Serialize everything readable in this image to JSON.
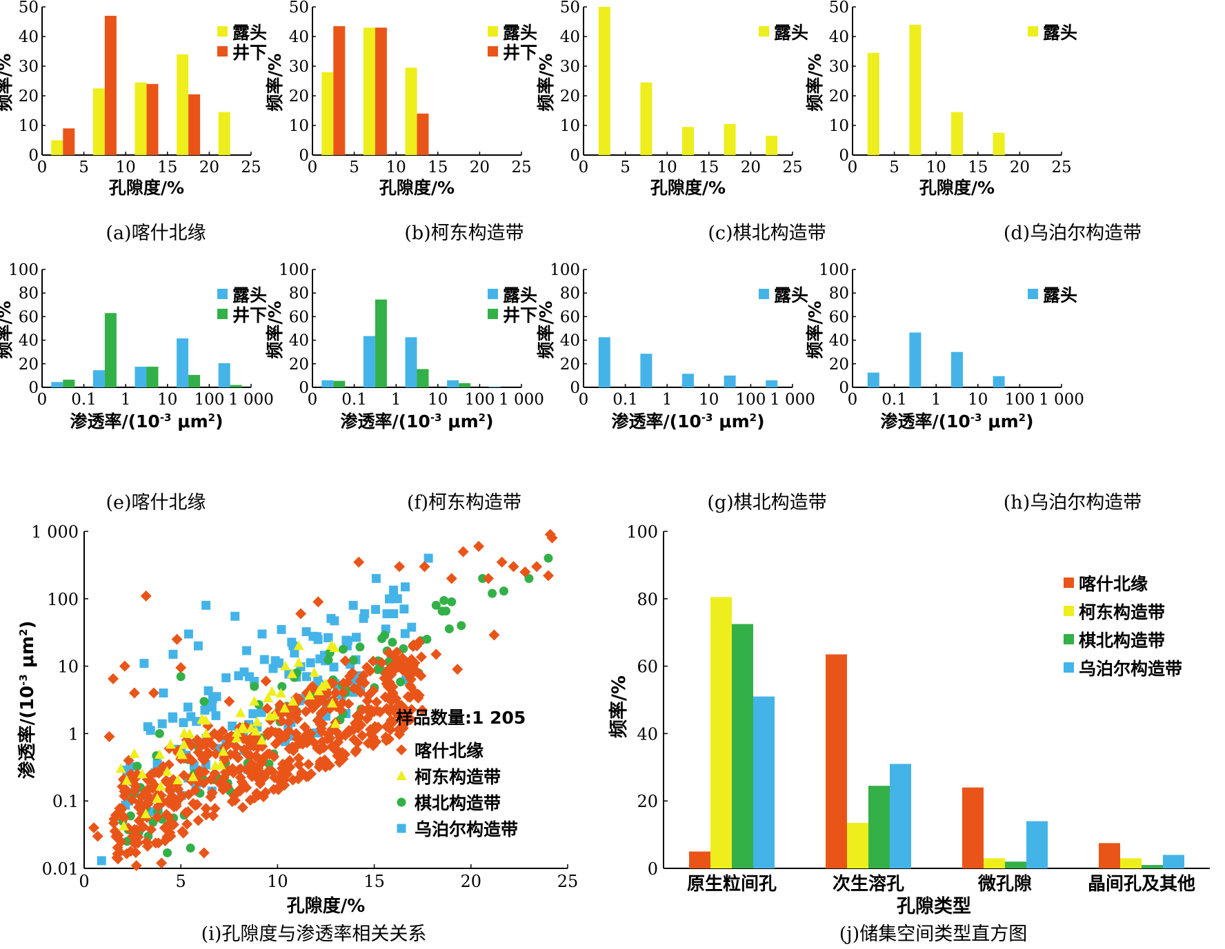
{
  "colors": {
    "outcrop_porosity": "#eeee1c",
    "underground_porosity": "#e95519",
    "outcrop_permeability": "#44b4e8",
    "underground_permeability": "#33b048",
    "kashi": "#e95519",
    "kedong": "#eeee1c",
    "qibei": "#33b048",
    "wupoer": "#44b4e8"
  },
  "chart_data": [
    {
      "id": "a",
      "type": "bar",
      "caption": "(a)喀什北缘",
      "xlabel": "孔隙度/%",
      "ylabel": "频率/%",
      "xlim": [
        0,
        25
      ],
      "xticks": [
        "0",
        "5",
        "10",
        "15",
        "20",
        "25"
      ],
      "ylim": [
        0,
        50
      ],
      "yticks": [
        "0",
        "10",
        "20",
        "30",
        "40",
        "50"
      ],
      "categories": [
        "0-5",
        "5-10",
        "10-15",
        "15-20",
        "20-25"
      ],
      "series": [
        {
          "name": "露头",
          "color_key": "outcrop_porosity",
          "values": [
            5,
            22.5,
            24.5,
            34,
            14.5
          ]
        },
        {
          "name": "井下",
          "color_key": "underground_porosity",
          "values": [
            9,
            47,
            24,
            20.5,
            null
          ]
        }
      ],
      "legend": "top-right"
    },
    {
      "id": "b",
      "type": "bar",
      "caption": "(b)柯东构造带",
      "xlabel": "孔隙度/%",
      "ylabel": "频率/%",
      "xlim": [
        0,
        25
      ],
      "xticks": [
        "0",
        "5",
        "10",
        "15",
        "20",
        "25"
      ],
      "ylim": [
        0,
        50
      ],
      "yticks": [
        "0",
        "10",
        "20",
        "30",
        "40",
        "50"
      ],
      "categories": [
        "0-5",
        "5-10",
        "10-15",
        "15-20",
        "20-25"
      ],
      "series": [
        {
          "name": "露头",
          "color_key": "outcrop_porosity",
          "values": [
            28,
            43,
            29.5,
            null,
            null
          ]
        },
        {
          "name": "井下",
          "color_key": "underground_porosity",
          "values": [
            43.5,
            43,
            14,
            null,
            null
          ]
        }
      ],
      "legend": "top-right"
    },
    {
      "id": "c",
      "type": "bar",
      "caption": "(c)棋北构造带",
      "xlabel": "孔隙度/%",
      "ylabel": "频率/%",
      "xlim": [
        0,
        25
      ],
      "xticks": [
        "0",
        "5",
        "10",
        "15",
        "20",
        "25"
      ],
      "ylim": [
        0,
        50
      ],
      "yticks": [
        "0",
        "10",
        "20",
        "30",
        "40",
        "50"
      ],
      "categories": [
        "0-5",
        "5-10",
        "10-15",
        "15-20",
        "20-25"
      ],
      "series": [
        {
          "name": "露头",
          "color_key": "outcrop_porosity",
          "values": [
            50,
            24.5,
            9.5,
            10.5,
            6.5
          ]
        }
      ],
      "legend": "top-right"
    },
    {
      "id": "d",
      "type": "bar",
      "caption": "(d)乌泊尔构造带",
      "xlabel": "孔隙度/%",
      "ylabel": "频率/%",
      "xlim": [
        0,
        25
      ],
      "xticks": [
        "0",
        "5",
        "10",
        "15",
        "20",
        "25"
      ],
      "ylim": [
        0,
        50
      ],
      "yticks": [
        "0",
        "10",
        "20",
        "30",
        "40",
        "50"
      ],
      "categories": [
        "0-5",
        "5-10",
        "10-15",
        "15-20",
        "20-25"
      ],
      "series": [
        {
          "name": "露头",
          "color_key": "outcrop_porosity",
          "values": [
            34.5,
            44,
            14.5,
            7.5,
            null
          ]
        }
      ],
      "legend": "top-right"
    },
    {
      "id": "e",
      "type": "bar",
      "caption": "(e)喀什北缘",
      "xlabel": "渗透率/(10⁻³ μm²)",
      "ylabel": "频率/%",
      "xticks": [
        "0",
        "0.1",
        "1",
        "10",
        "100",
        "1 000"
      ],
      "ylim": [
        0,
        100
      ],
      "yticks": [
        "0",
        "20",
        "40",
        "60",
        "80",
        "100"
      ],
      "categories": [
        "<0.1",
        "0.1-1",
        "1-10",
        "10-100",
        ">100"
      ],
      "series": [
        {
          "name": "露头",
          "color_key": "outcrop_permeability",
          "values": [
            4.5,
            14.5,
            17.5,
            41.5,
            20.5
          ]
        },
        {
          "name": "井下",
          "color_key": "underground_permeability",
          "values": [
            6.5,
            63,
            17.5,
            10.5,
            2
          ]
        }
      ],
      "legend": "top-right"
    },
    {
      "id": "f",
      "type": "bar",
      "caption": "(f)柯东构造带",
      "xlabel": "渗透率/(10⁻³ μm²)",
      "ylabel": "频率/%",
      "xticks": [
        "0",
        "0.1",
        "1",
        "10",
        "100",
        "1 000"
      ],
      "ylim": [
        0,
        100
      ],
      "yticks": [
        "0",
        "20",
        "40",
        "60",
        "80",
        "100"
      ],
      "categories": [
        "<0.1",
        "0.1-1",
        "1-10",
        "10-100",
        ">100"
      ],
      "series": [
        {
          "name": "露头",
          "color_key": "outcrop_permeability",
          "values": [
            6,
            43.5,
            42.5,
            6,
            0.5
          ]
        },
        {
          "name": "井下",
          "color_key": "underground_permeability",
          "values": [
            5.5,
            74.5,
            15.5,
            3.5,
            null
          ]
        }
      ],
      "legend": "top-right"
    },
    {
      "id": "g",
      "type": "bar",
      "caption": "(g)棋北构造带",
      "xlabel": "渗透率/(10⁻³ μm²)",
      "ylabel": "频率/%",
      "xticks": [
        "0",
        "0.1",
        "1",
        "10",
        "100",
        "1 000"
      ],
      "ylim": [
        0,
        100
      ],
      "yticks": [
        "0",
        "20",
        "40",
        "60",
        "80",
        "100"
      ],
      "categories": [
        "<0.1",
        "0.1-1",
        "1-10",
        "10-100",
        ">100"
      ],
      "series": [
        {
          "name": "露头",
          "color_key": "outcrop_permeability",
          "values": [
            42.5,
            28.5,
            11.5,
            10,
            6
          ]
        }
      ],
      "legend": "top-right"
    },
    {
      "id": "h",
      "type": "bar",
      "caption": "(h)乌泊尔构造带",
      "xlabel": "渗透率/(10⁻³ μm²)",
      "ylabel": "频率/%",
      "xticks": [
        "0",
        "0.1",
        "1",
        "10",
        "100",
        "1 000"
      ],
      "ylim": [
        0,
        100
      ],
      "yticks": [
        "0",
        "20",
        "40",
        "60",
        "80",
        "100"
      ],
      "categories": [
        "<0.1",
        "0.1-1",
        "1-10",
        "10-100",
        ">100"
      ],
      "series": [
        {
          "name": "露头",
          "color_key": "outcrop_permeability",
          "values": [
            12.5,
            46.5,
            30,
            9.5,
            null
          ]
        }
      ],
      "legend": "top-right"
    },
    {
      "id": "i",
      "type": "scatter",
      "caption": "(i)孔隙度与渗透率相关关系",
      "xlabel": "孔隙度/%",
      "ylabel": "渗透率/(10⁻³ μm²)",
      "xlim": [
        0,
        25
      ],
      "xticks": [
        "0",
        "5",
        "10",
        "15",
        "20",
        "25"
      ],
      "yscale": "log",
      "ylim": [
        0.01,
        1000
      ],
      "yticks": [
        "0.01",
        "0.1",
        "1",
        "10",
        "100",
        "1 000"
      ],
      "annotation": "样品数量:1 205",
      "legend": "lower-right",
      "series": [
        {
          "name": "喀什北缘",
          "marker": "diamond",
          "color_key": "kashi",
          "points": [
            [
              0.5,
              0.04
            ],
            [
              0.7,
              0.03
            ],
            [
              1.3,
              0.9
            ],
            [
              1.5,
              6.5
            ],
            [
              2.1,
              10
            ],
            [
              2.3,
              0.4
            ],
            [
              2.6,
              4
            ],
            [
              2.7,
              0.011
            ],
            [
              3.2,
              110
            ],
            [
              3.3,
              0.15
            ],
            [
              3.6,
              4
            ],
            [
              4,
              0.012
            ],
            [
              4.4,
              0.6
            ],
            [
              4.8,
              25
            ],
            [
              5,
              9.5
            ],
            [
              5.3,
              0.8
            ],
            [
              6.2,
              0.017
            ],
            [
              6.4,
              1.3
            ],
            [
              6.8,
              0.5
            ],
            [
              7.5,
              3
            ],
            [
              8.2,
              0.08
            ],
            [
              8.5,
              0.3
            ],
            [
              9.1,
              0.18
            ],
            [
              9.4,
              6
            ],
            [
              9.9,
              0.7
            ],
            [
              10.5,
              0.25
            ],
            [
              11.2,
              60
            ],
            [
              11.8,
              5
            ],
            [
              12.1,
              90
            ],
            [
              12.9,
              0.6
            ],
            [
              13.5,
              12
            ],
            [
              14,
              1.2
            ],
            [
              14.2,
              350
            ],
            [
              15,
              0.8
            ],
            [
              15.6,
              8
            ],
            [
              16,
              1.5
            ],
            [
              16.3,
              300
            ],
            [
              16.5,
              1.2
            ],
            [
              17.2,
              20
            ],
            [
              17.6,
              300
            ],
            [
              18.2,
              15
            ],
            [
              19,
              200
            ],
            [
              19.3,
              9
            ],
            [
              19.6,
              500
            ],
            [
              20.4,
              600
            ],
            [
              20.9,
              200
            ],
            [
              21.2,
              29
            ],
            [
              21.6,
              350
            ],
            [
              22.2,
              300
            ],
            [
              22.8,
              250
            ],
            [
              23.4,
              300
            ],
            [
              24,
              220
            ],
            [
              24.1,
              900
            ],
            [
              24.2,
              800
            ]
          ]
        },
        {
          "name": "柯东构造带",
          "marker": "triangle",
          "color_key": "kedong",
          "points": [
            [
              1.9,
              0.3
            ],
            [
              2.2,
              0.2
            ],
            [
              2.6,
              0.5
            ],
            [
              3,
              0.25
            ],
            [
              8.8,
              3
            ],
            [
              9.6,
              1.8
            ],
            [
              10.4,
              10
            ],
            [
              11.1,
              20
            ],
            [
              11.9,
              8
            ],
            [
              12.3,
              5
            ],
            [
              13,
              1.4
            ]
          ]
        },
        {
          "name": "棋北构造带",
          "marker": "circle",
          "color_key": "qibei",
          "points": [
            [
              2,
              0.05
            ],
            [
              2.4,
              0.06
            ],
            [
              3.2,
              0.08
            ],
            [
              3.9,
              1
            ],
            [
              4.3,
              0.017
            ],
            [
              5,
              7
            ],
            [
              5.5,
              0.02
            ],
            [
              6.2,
              3
            ],
            [
              7.2,
              0.5
            ],
            [
              8.8,
              5
            ],
            [
              9.8,
              0.5
            ],
            [
              11,
              8
            ],
            [
              13.5,
              4
            ],
            [
              15.2,
              12
            ],
            [
              16.8,
              8
            ],
            [
              17,
              20
            ],
            [
              18.2,
              80
            ],
            [
              19,
              90
            ],
            [
              19.5,
              40
            ],
            [
              20.6,
              200
            ],
            [
              21.1,
              120
            ],
            [
              21.7,
              130
            ],
            [
              23,
              200
            ],
            [
              24,
              400
            ]
          ]
        },
        {
          "name": "乌泊尔构造带",
          "marker": "square",
          "color_key": "wupoer",
          "points": [
            [
              0.9,
              0.013
            ],
            [
              2.3,
              0.1
            ],
            [
              3.1,
              11
            ],
            [
              4.1,
              4
            ],
            [
              4.6,
              15
            ],
            [
              5.4,
              30
            ],
            [
              5.9,
              20
            ],
            [
              6.3,
              80
            ],
            [
              6.9,
              0.6
            ],
            [
              7.8,
              55
            ],
            [
              8.4,
              17
            ],
            [
              9.2,
              30
            ],
            [
              10.2,
              35
            ],
            [
              10.8,
              20
            ],
            [
              11.5,
              7
            ],
            [
              12.4,
              4
            ],
            [
              13.6,
              20
            ],
            [
              14.5,
              60
            ],
            [
              15.1,
              200
            ],
            [
              16,
              60
            ],
            [
              16.2,
              100
            ],
            [
              16.6,
              150
            ],
            [
              17.8,
              400
            ]
          ]
        }
      ]
    },
    {
      "id": "j",
      "type": "bar",
      "caption": "(j)储集空间类型直方图",
      "xlabel": "孔隙类型",
      "ylabel": "频率/%",
      "ylim": [
        0,
        100
      ],
      "yticks": [
        "0",
        "20",
        "40",
        "60",
        "80",
        "100"
      ],
      "categories": [
        "原生粒间孔",
        "次生溶孔",
        "微孔隙",
        "晶间孔及其他"
      ],
      "series": [
        {
          "name": "喀什北缘",
          "color_key": "kashi",
          "values": [
            5,
            63.5,
            24,
            7.5
          ]
        },
        {
          "name": "柯东构造带",
          "color_key": "kedong",
          "values": [
            80.5,
            13.5,
            3,
            3
          ]
        },
        {
          "name": "棋北构造带",
          "color_key": "qibei",
          "values": [
            72.5,
            24.5,
            2,
            1
          ]
        },
        {
          "name": "乌泊尔构造带",
          "color_key": "wupoer",
          "values": [
            51,
            31,
            14,
            4
          ]
        }
      ],
      "legend": "top-right"
    }
  ]
}
